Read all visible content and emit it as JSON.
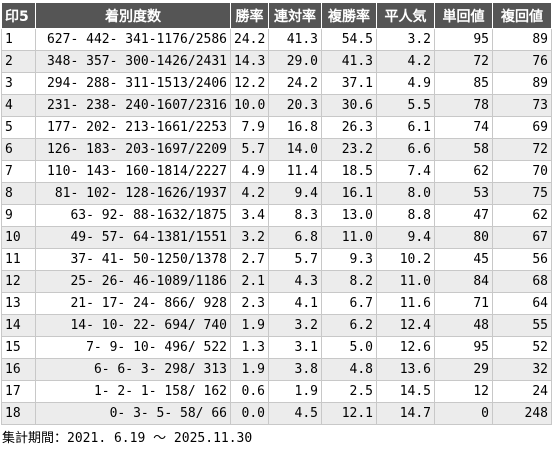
{
  "table": {
    "headers": [
      "印5",
      "着別度数",
      "勝率",
      "連対率",
      "複勝率",
      "平人気",
      "単回値",
      "複回値"
    ],
    "rows": [
      [
        "1",
        "627- 442- 341-1176/2586",
        "24.2",
        "41.3",
        "54.5",
        "3.2",
        "95",
        "89"
      ],
      [
        "2",
        "348- 357- 300-1426/2431",
        "14.3",
        "29.0",
        "41.3",
        "4.2",
        "72",
        "76"
      ],
      [
        "3",
        "294- 288- 311-1513/2406",
        "12.2",
        "24.2",
        "37.1",
        "4.9",
        "85",
        "89"
      ],
      [
        "4",
        "231- 238- 240-1607/2316",
        "10.0",
        "20.3",
        "30.6",
        "5.5",
        "78",
        "73"
      ],
      [
        "5",
        "177- 202- 213-1661/2253",
        "7.9",
        "16.8",
        "26.3",
        "6.1",
        "74",
        "69"
      ],
      [
        "6",
        "126- 183- 203-1697/2209",
        "5.7",
        "14.0",
        "23.2",
        "6.6",
        "58",
        "72"
      ],
      [
        "7",
        "110- 143- 160-1814/2227",
        "4.9",
        "11.4",
        "18.5",
        "7.4",
        "62",
        "70"
      ],
      [
        "8",
        "81- 102- 128-1626/1937",
        "4.2",
        "9.4",
        "16.1",
        "8.0",
        "53",
        "75"
      ],
      [
        "9",
        "63- 92- 88-1632/1875",
        "3.4",
        "8.3",
        "13.0",
        "8.8",
        "47",
        "62"
      ],
      [
        "10",
        "49- 57- 64-1381/1551",
        "3.2",
        "6.8",
        "11.0",
        "9.4",
        "80",
        "67"
      ],
      [
        "11",
        "37- 41- 50-1250/1378",
        "2.7",
        "5.7",
        "9.3",
        "10.2",
        "45",
        "56"
      ],
      [
        "12",
        "25- 26- 46-1089/1186",
        "2.1",
        "4.3",
        "8.2",
        "11.0",
        "84",
        "68"
      ],
      [
        "13",
        "21- 17- 24- 866/ 928",
        "2.3",
        "4.1",
        "6.7",
        "11.6",
        "71",
        "64"
      ],
      [
        "14",
        "14- 10- 22- 694/ 740",
        "1.9",
        "3.2",
        "6.2",
        "12.4",
        "48",
        "55"
      ],
      [
        "15",
        "7- 9- 10- 496/ 522",
        "1.3",
        "3.1",
        "5.0",
        "12.6",
        "95",
        "52"
      ],
      [
        "16",
        "6- 6- 3- 298/ 313",
        "1.9",
        "3.8",
        "4.8",
        "13.6",
        "29",
        "32"
      ],
      [
        "17",
        "1- 2- 1- 158/ 162",
        "0.6",
        "1.9",
        "2.5",
        "14.5",
        "12",
        "24"
      ],
      [
        "18",
        "0- 3- 5- 58/ 66",
        "0.0",
        "4.5",
        "12.1",
        "14.7",
        "0",
        "248"
      ]
    ]
  },
  "footer": {
    "label": "集計期間：",
    "period": "2021. 6.19 ～ 2025.11.30"
  }
}
